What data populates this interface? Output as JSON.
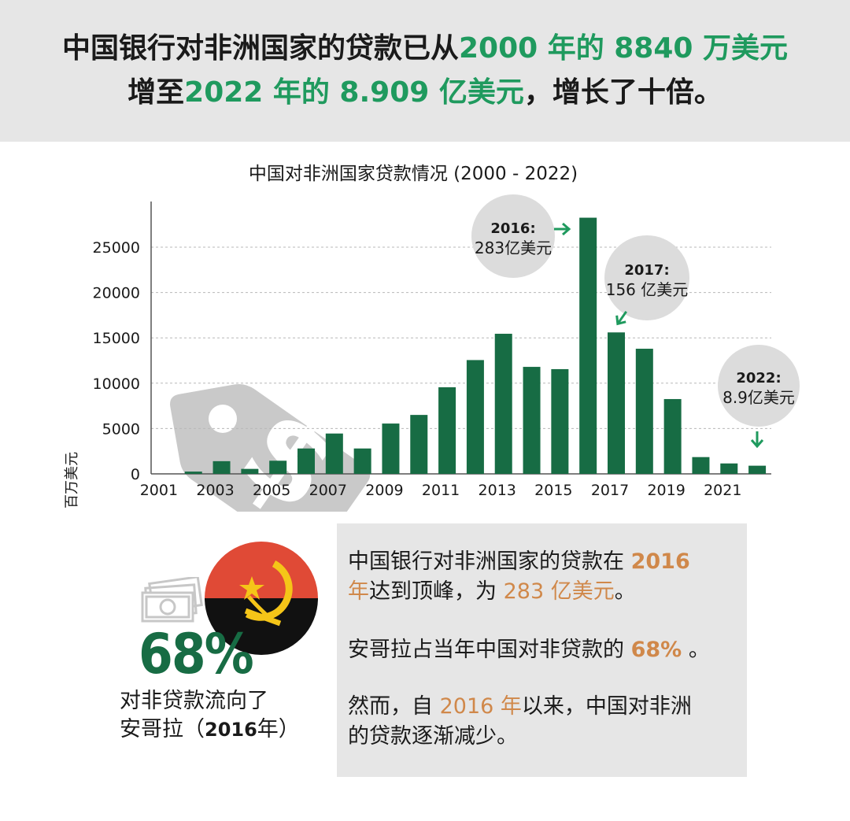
{
  "header": {
    "line1_a": "中国银行对非洲国家的贷款已从",
    "line1_b": "2000 年的 8840 万美元",
    "line2_a": "增至",
    "line2_b": "2022 年的 8.909 亿美元",
    "line2_c": "，增长了十倍。"
  },
  "colors": {
    "bar": "#176c44",
    "accent_green": "#1f9a5e",
    "accent_orange": "#d0884a",
    "panel_gray": "#e6e6e6"
  },
  "chart_data": {
    "type": "bar",
    "title": "中国对非洲国家贷款情况 (2000 - 2022)",
    "ylabel": "百万美元",
    "xlabel": "",
    "ylim": [
      0,
      30000
    ],
    "yticks": [
      0,
      5000,
      10000,
      15000,
      20000,
      25000
    ],
    "xtick_labels": [
      "2001",
      "2003",
      "2005",
      "2007",
      "2009",
      "2011",
      "2013",
      "2015",
      "2017",
      "2019",
      "2021"
    ],
    "grid": true,
    "categories": [
      "2001",
      "2002",
      "2003",
      "2004",
      "2005",
      "2006",
      "2007",
      "2008",
      "2009",
      "2010",
      "2011",
      "2012",
      "2013",
      "2014",
      "2015",
      "2016",
      "2017",
      "2018",
      "2019",
      "2020",
      "2021",
      "2022"
    ],
    "values": [
      0,
      250,
      1400,
      550,
      1450,
      2800,
      4450,
      2800,
      5550,
      6500,
      9550,
      12550,
      15450,
      11800,
      11550,
      28250,
      15600,
      13800,
      8250,
      1850,
      1150,
      900
    ],
    "annotations": [
      {
        "year": "2016",
        "label_year": "2016:",
        "label_value": "283亿美元",
        "arrow": "→"
      },
      {
        "year": "2017",
        "label_year": "2017:",
        "label_value": "156 亿美元",
        "arrow": "↙"
      },
      {
        "year": "2022",
        "label_year": "2022:",
        "label_value": "8.9亿美元",
        "arrow": "↓"
      }
    ]
  },
  "decor": {
    "price_tag_icon": "dollar-price-tag-icon",
    "flag_icon": "angola-flag-icon",
    "cash_icon": "cash-bills-icon"
  },
  "stat": {
    "percent": "68%",
    "label_line1": "对非贷款流向了",
    "label_line2_a": "安哥拉（",
    "label_line2_b": "2016",
    "label_line2_c": "年）"
  },
  "textbox": {
    "p1_a": "中国银行对非洲国家的贷款在 ",
    "p1_b": "2016",
    "p1_c": "年",
    "p1_d": "达到顶峰，为 ",
    "p1_e": "283 亿美元",
    "p1_f": "。",
    "p2_a": "安哥拉占当年中国对非贷款的 ",
    "p2_b": "68%",
    "p2_c": " 。",
    "p3_a": "然而，自 ",
    "p3_b": "2016 年",
    "p3_c": "以来，中国对非洲",
    "p3_d": "的贷款逐渐减少。"
  }
}
